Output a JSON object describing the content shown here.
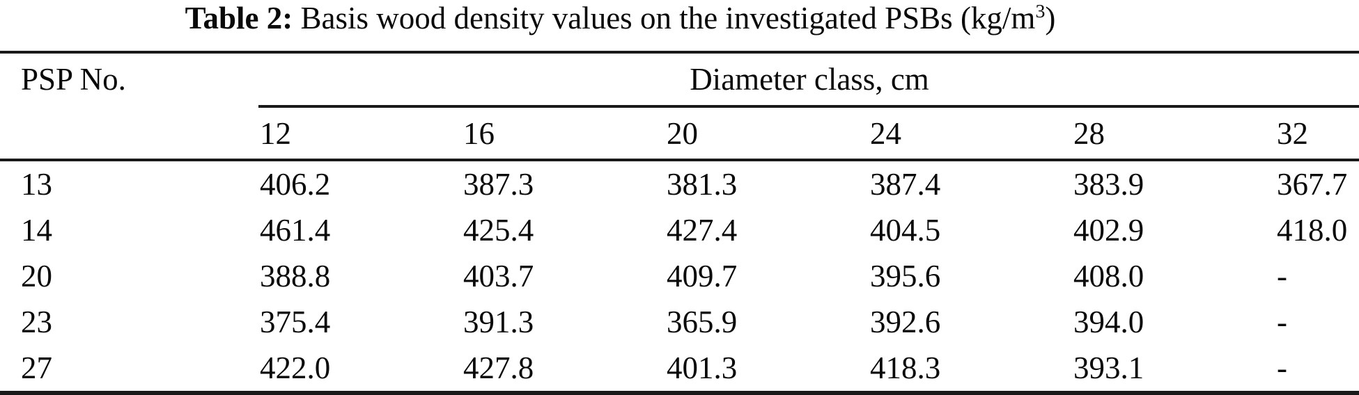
{
  "title": {
    "label": "Table 2:",
    "text": " Basis wood density values on the investigated PSBs (kg/m",
    "superscript": "3",
    "suffix": ")"
  },
  "table": {
    "col1_header": "PSP No.",
    "group_header": "Diameter class, cm",
    "diameter_classes": [
      "12",
      "16",
      "20",
      "24",
      "28",
      "32"
    ],
    "rows": [
      {
        "psp": "13",
        "values": [
          "406.2",
          "387.3",
          "381.3",
          "387.4",
          "383.9",
          "367.7"
        ]
      },
      {
        "psp": "14",
        "values": [
          "461.4",
          "425.4",
          "427.4",
          "404.5",
          "402.9",
          "418.0"
        ]
      },
      {
        "psp": "20",
        "values": [
          "388.8",
          "403.7",
          "409.7",
          "395.6",
          "408.0",
          "-"
        ]
      },
      {
        "psp": "23",
        "values": [
          "375.4",
          "391.3",
          "365.9",
          "392.6",
          "394.0",
          "-"
        ]
      },
      {
        "psp": "27",
        "values": [
          "422.0",
          "427.8",
          "401.3",
          "418.3",
          "393.1",
          "-"
        ]
      }
    ]
  },
  "chart_data": {
    "type": "table",
    "title": "Table 2: Basis wood density values on the investigated PSBs (kg/m3)",
    "columns": [
      "PSP No.",
      "12",
      "16",
      "20",
      "24",
      "28",
      "32"
    ],
    "column_group_label": "Diameter class, cm",
    "rows": [
      [
        "13",
        406.2,
        387.3,
        381.3,
        387.4,
        383.9,
        367.7
      ],
      [
        "14",
        461.4,
        425.4,
        427.4,
        404.5,
        402.9,
        418.0
      ],
      [
        "20",
        388.8,
        403.7,
        409.7,
        395.6,
        408.0,
        null
      ],
      [
        "23",
        375.4,
        391.3,
        365.9,
        392.6,
        394.0,
        null
      ],
      [
        "27",
        422.0,
        427.8,
        401.3,
        418.3,
        393.1,
        null
      ]
    ],
    "missing_value_marker": "-"
  },
  "colors": {
    "text": "#0a0a0a",
    "rule": "#1a1a1a",
    "background": "#ffffff"
  }
}
